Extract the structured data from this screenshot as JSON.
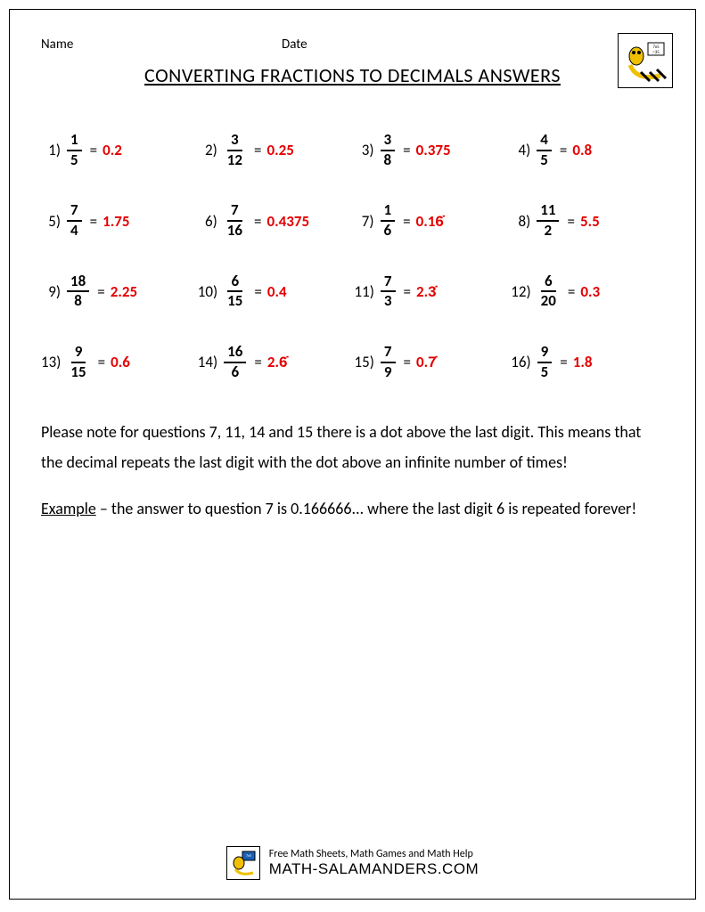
{
  "header": {
    "name_label": "Name",
    "date_label": "Date"
  },
  "title": "CONVERTING FRACTIONS TO DECIMALS ANSWERS",
  "answer_color": "#e40000",
  "text_color": "#000000",
  "problems": [
    {
      "n": "1)",
      "num": "1",
      "den": "5",
      "ans": "0.2"
    },
    {
      "n": "2)",
      "num": "3",
      "den": "12",
      "ans": "0.25"
    },
    {
      "n": "3)",
      "num": "3",
      "den": "8",
      "ans": "0.375"
    },
    {
      "n": "4)",
      "num": "4",
      "den": "5",
      "ans": "0.8"
    },
    {
      "n": "5)",
      "num": "7",
      "den": "4",
      "ans": "1.75"
    },
    {
      "n": "6)",
      "num": "7",
      "den": "16",
      "ans": "0.4375"
    },
    {
      "n": "7)",
      "num": "1",
      "den": "6",
      "ans": "0.16̇"
    },
    {
      "n": "8)",
      "num": "11",
      "den": "2",
      "ans": "5.5"
    },
    {
      "n": "9)",
      "num": "18",
      "den": "8",
      "ans": "2.25"
    },
    {
      "n": "10)",
      "num": "6",
      "den": "15",
      "ans": "0.4"
    },
    {
      "n": "11)",
      "num": "7",
      "den": "3",
      "ans": "2.3̇"
    },
    {
      "n": "12)",
      "num": "6",
      "den": "20",
      "ans": "0.3"
    },
    {
      "n": "13)",
      "num": "9",
      "den": "15",
      "ans": "0.6"
    },
    {
      "n": "14)",
      "num": "16",
      "den": "6",
      "ans": "2.6̇"
    },
    {
      "n": "15)",
      "num": "7",
      "den": "9",
      "ans": "0.7̇"
    },
    {
      "n": "16)",
      "num": "9",
      "den": "5",
      "ans": "1.8"
    }
  ],
  "note": {
    "paragraph1": "Please note for questions 7, 11, 14 and 15 there is a dot above the last digit. This means that the decimal repeats the last digit with the dot above an infinite number of times!",
    "example_label": "Example",
    "example_text": " – the answer to question 7 is 0.166666... where the last digit 6 is repeated forever!"
  },
  "footer": {
    "tagline": "Free Math Sheets, Math Games and Math Help",
    "site": "MATH-SALAMANDERS.COM"
  }
}
